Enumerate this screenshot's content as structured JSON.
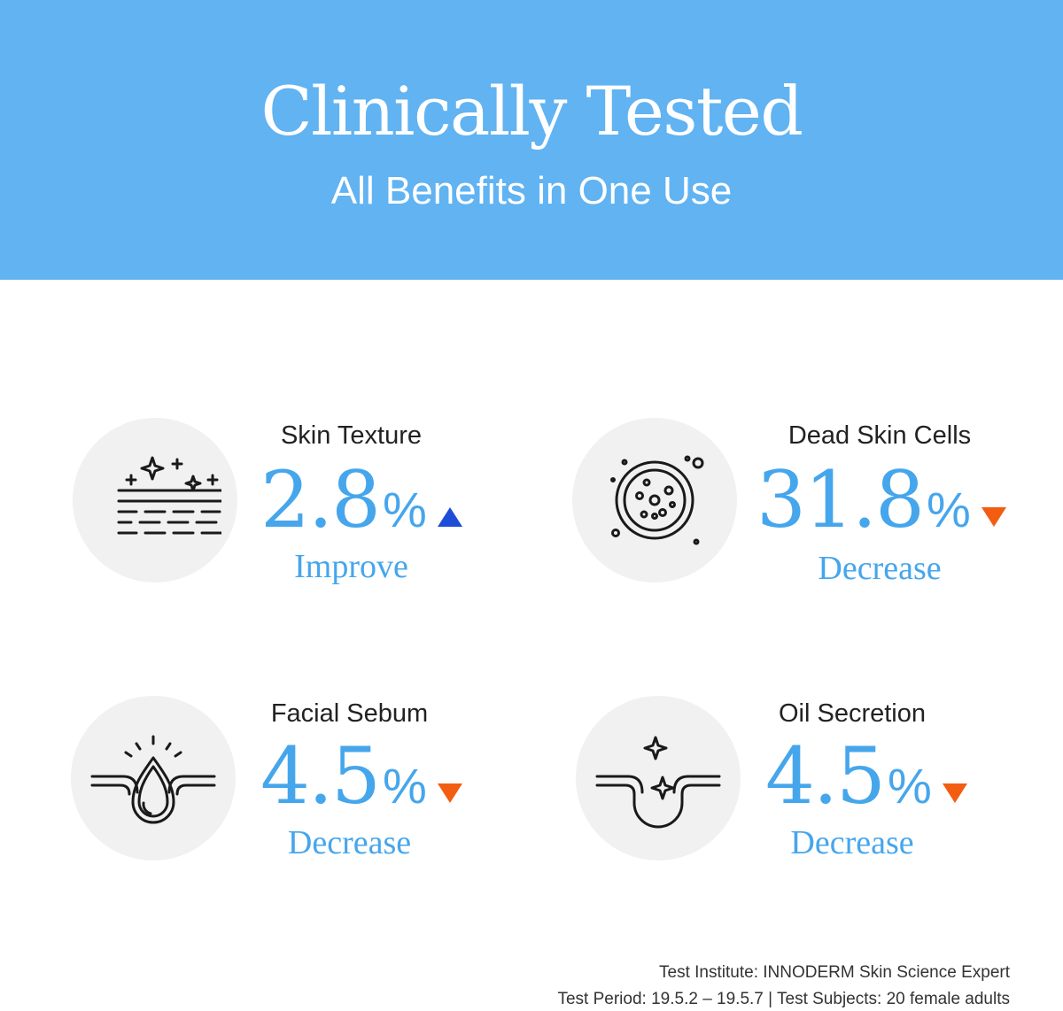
{
  "header": {
    "title": "Clinically Tested",
    "subtitle": "All Benefits in One Use"
  },
  "benefits": [
    {
      "label": "Skin Texture",
      "value": "2.8",
      "unit": "%",
      "direction": "Improve",
      "trend": "up",
      "icon": "skin-texture-icon",
      "trend_color": "#1e4ed8"
    },
    {
      "label": "Dead Skin Cells",
      "value": "31.8",
      "unit": "%",
      "direction": "Decrease",
      "trend": "down",
      "icon": "dead-skin-cells-icon",
      "trend_color": "#f25d12"
    },
    {
      "label": "Facial Sebum",
      "value": "4.5",
      "unit": "%",
      "direction": "Decrease",
      "trend": "down",
      "icon": "sebum-droplet-icon",
      "trend_color": "#f25d12"
    },
    {
      "label": "Oil Secretion",
      "value": "4.5",
      "unit": "%",
      "direction": "Decrease",
      "trend": "down",
      "icon": "oil-secretion-pore-icon",
      "trend_color": "#f25d12"
    }
  ],
  "footnotes": {
    "institute": "Test Institute: INNODERM Skin Science Expert",
    "period_subjects": "Test Period: 19.5.2 – 19.5.7 | Test Subjects: 20 female adults"
  },
  "colors": {
    "banner": "#61b3f2",
    "accent_value": "#46a6ec",
    "icon_background": "#f1f1f1"
  }
}
